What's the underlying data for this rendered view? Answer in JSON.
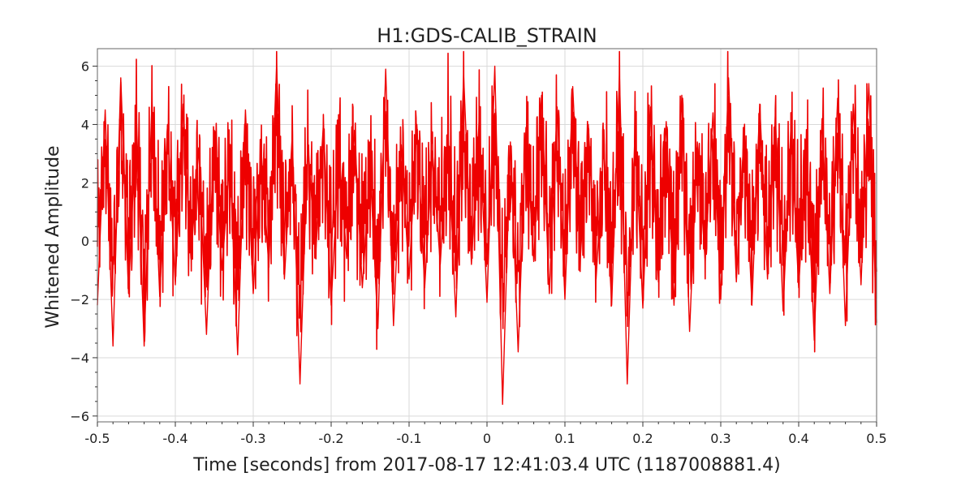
{
  "chart_data": {
    "type": "line",
    "title": "H1:GDS-CALIB_STRAIN",
    "xlabel": "Time [seconds] from 2017-08-17 12:41:03.4 UTC (1187008881.4)",
    "ylabel": "Whitened Amplitude",
    "xlim": [
      -0.5,
      0.5
    ],
    "ylim": [
      -6.2,
      6.6
    ],
    "xticks": [
      -0.5,
      -0.4,
      -0.3,
      -0.2,
      -0.1,
      0,
      0.1,
      0.2,
      0.3,
      0.4,
      0.5
    ],
    "xtick_labels": [
      "-0.5",
      "-0.4",
      "-0.3",
      "-0.2",
      "-0.1",
      "0",
      "0.1",
      "0.2",
      "0.3",
      "0.4",
      "0.5"
    ],
    "yticks": [
      -6,
      -4,
      -2,
      0,
      2,
      4,
      6
    ],
    "ytick_labels": [
      "−6",
      "−4",
      "−2",
      "0",
      "2",
      "4",
      "6"
    ],
    "grid": true,
    "series": [
      {
        "color": "#ee0000",
        "x": [
          -0.5,
          -0.49,
          -0.48,
          -0.47,
          -0.46,
          -0.45,
          -0.44,
          -0.43,
          -0.42,
          -0.41,
          -0.4,
          -0.39,
          -0.38,
          -0.37,
          -0.36,
          -0.35,
          -0.34,
          -0.33,
          -0.32,
          -0.31,
          -0.3,
          -0.29,
          -0.28,
          -0.27,
          -0.26,
          -0.25,
          -0.24,
          -0.23,
          -0.22,
          -0.21,
          -0.2,
          -0.19,
          -0.18,
          -0.17,
          -0.16,
          -0.15,
          -0.14,
          -0.13,
          -0.12,
          -0.11,
          -0.1,
          -0.09,
          -0.08,
          -0.07,
          -0.06,
          -0.05,
          -0.04,
          -0.03,
          -0.02,
          -0.01,
          0,
          0.01,
          0.02,
          0.03,
          0.04,
          0.05,
          0.06,
          0.07,
          0.08,
          0.09,
          0.1,
          0.11,
          0.12,
          0.13,
          0.14,
          0.15,
          0.16,
          0.17,
          0.18,
          0.19,
          0.2,
          0.21,
          0.22,
          0.23,
          0.24,
          0.25,
          0.26,
          0.27,
          0.28,
          0.29,
          0.3,
          0.31,
          0.32,
          0.33,
          0.34,
          0.35,
          0.36,
          0.37,
          0.38,
          0.39,
          0.4,
          0.41,
          0.42,
          0.43,
          0.44,
          0.45,
          0.46,
          0.47,
          0.48,
          0.49,
          0.5
        ],
        "y": [
          -2.2,
          4.5,
          -3.6,
          5.6,
          -1.8,
          4.3,
          -3.6,
          4.8,
          -1.9,
          4.0,
          -1.5,
          4.7,
          -0.6,
          3.2,
          -3.2,
          3.8,
          -1.0,
          2.9,
          -3.9,
          4.5,
          -1.8,
          3.2,
          -0.9,
          6.0,
          -1.3,
          3.6,
          -4.9,
          3.4,
          -0.5,
          4.0,
          -2.2,
          3.1,
          -0.6,
          3.8,
          -1.6,
          2.5,
          -3.0,
          5.9,
          -2.9,
          3.3,
          -1.3,
          4.0,
          -1.6,
          3.1,
          -0.8,
          3.7,
          -2.6,
          5.7,
          -0.8,
          4.2,
          -2.1,
          6.0,
          -5.6,
          3.4,
          -3.8,
          3.9,
          -0.7,
          5.0,
          -1.8,
          4.6,
          -2.0,
          5.3,
          -0.5,
          4.0,
          -1.3,
          3.3,
          -2.2,
          5.7,
          -4.9,
          3.9,
          -2.3,
          4.6,
          -1.4,
          4.1,
          -2.2,
          5.0,
          -3.1,
          3.4,
          -0.7,
          4.4,
          -2.0,
          5.6,
          -1.4,
          3.8,
          -2.2,
          4.7,
          -1.3,
          4.3,
          -2.4,
          3.9,
          -1.6,
          3.2,
          -3.4,
          4.2,
          -1.8,
          4.9,
          -2.9,
          4.7,
          -1.5,
          5.4,
          -2.8
        ]
      }
    ]
  }
}
